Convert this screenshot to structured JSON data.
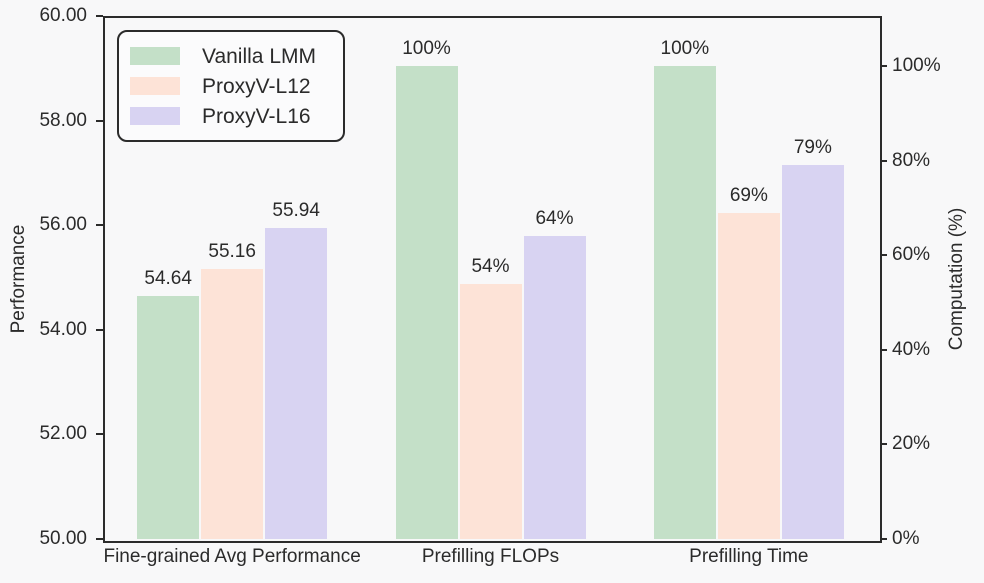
{
  "chart_data": {
    "type": "bar",
    "categories": [
      "Fine-grained Avg Performance",
      "Prefilling FLOPs",
      "Prefilling Time"
    ],
    "category_axis": [
      "left",
      "right",
      "right"
    ],
    "series": [
      {
        "name": "Vanilla LMM",
        "color": "#c4e0c8",
        "values": [
          54.64,
          100,
          100
        ],
        "value_labels": [
          "54.64",
          "100%",
          "100%"
        ]
      },
      {
        "name": "ProxyV-L12",
        "color": "#fde3d7",
        "values": [
          55.16,
          54,
          69
        ],
        "value_labels": [
          "55.16",
          "54%",
          "69%"
        ]
      },
      {
        "name": "ProxyV-L16",
        "color": "#d8d3f2",
        "values": [
          55.94,
          64,
          79
        ],
        "value_labels": [
          "55.94",
          "64%",
          "79%"
        ]
      }
    ],
    "left_axis": {
      "label": "Performance",
      "tick_values": [
        60,
        58,
        56,
        54,
        52,
        50
      ],
      "tick_labels": [
        "60.00",
        "58.00",
        "56.00",
        "54.00",
        "52.00",
        "50.00"
      ],
      "range": [
        50,
        60
      ]
    },
    "right_axis": {
      "label": "Computation (%)",
      "tick_values": [
        100,
        80,
        60,
        40,
        20,
        0
      ],
      "tick_labels": [
        "100%",
        "80%",
        "60%",
        "40%",
        "20%",
        "0%"
      ],
      "range": [
        0,
        110.57
      ]
    },
    "title": "",
    "grid": false,
    "legend_position": "upper left"
  },
  "style": {
    "background": "#f8f8f9",
    "axis_color": "#2b2b2b",
    "text_color": "#2b2b2b"
  }
}
